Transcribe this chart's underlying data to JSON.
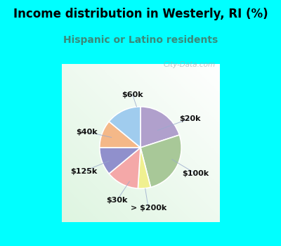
{
  "title": "Income distribution in Westerly, RI (%)",
  "subtitle": "Hispanic or Latino residents",
  "title_color": "#000000",
  "subtitle_color": "#3a8a7a",
  "background_cyan": "#00FFFF",
  "watermark": "City-Data.com",
  "labels": [
    "$20k",
    "$100k",
    "> $200k",
    "$30k",
    "$125k",
    "$40k",
    "$60k"
  ],
  "values": [
    20,
    26,
    5,
    13,
    11,
    11,
    14
  ],
  "colors": [
    "#b0a0cc",
    "#a8c898",
    "#f0f090",
    "#f4a8a8",
    "#9090cc",
    "#f4b888",
    "#a0ccee"
  ],
  "startangle": 90,
  "title_fontsize": 12,
  "subtitle_fontsize": 10,
  "label_fontsize": 8
}
